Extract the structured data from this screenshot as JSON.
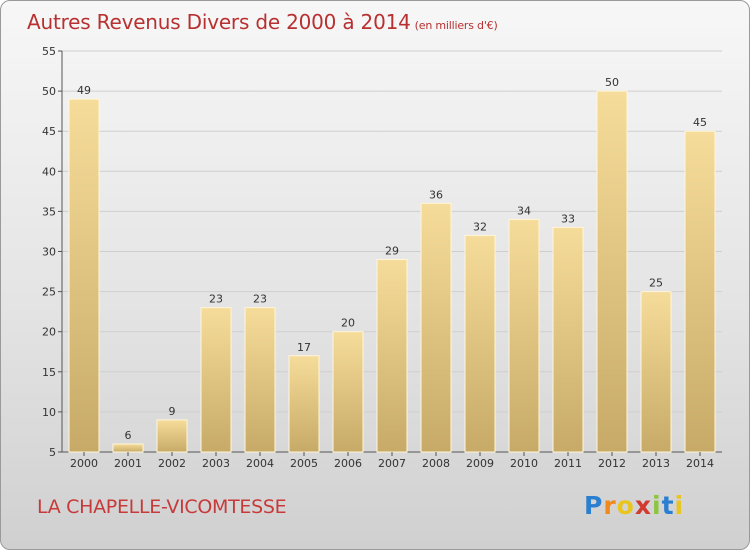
{
  "title_main": "Autres Revenus Divers de 2000 à 2014",
  "title_unit": "(en milliers d'€)",
  "town": "LA CHAPELLE-VICOMTESSE",
  "logo": {
    "letters": [
      "P",
      "r",
      "o",
      "x",
      "i",
      "t",
      "i"
    ],
    "colors": [
      "#2a7fd0",
      "#f08a1c",
      "#e8c51f",
      "#d23b2f",
      "#8cc63e",
      "#2a7fd0",
      "#e8c51f"
    ]
  },
  "chart_data": {
    "type": "bar",
    "categories": [
      "2000",
      "2001",
      "2002",
      "2003",
      "2004",
      "2005",
      "2006",
      "2007",
      "2008",
      "2009",
      "2010",
      "2011",
      "2012",
      "2013",
      "2014"
    ],
    "values": [
      49,
      6,
      9,
      23,
      23,
      17,
      20,
      29,
      36,
      32,
      34,
      33,
      50,
      25,
      45
    ],
    "ylim": [
      5,
      55
    ],
    "yticks": [
      5,
      10,
      15,
      20,
      25,
      30,
      35,
      40,
      45,
      50,
      55
    ],
    "grid": true,
    "bar_color_light": "#f6dc9a",
    "bar_color_dark": "#c7aa67"
  }
}
